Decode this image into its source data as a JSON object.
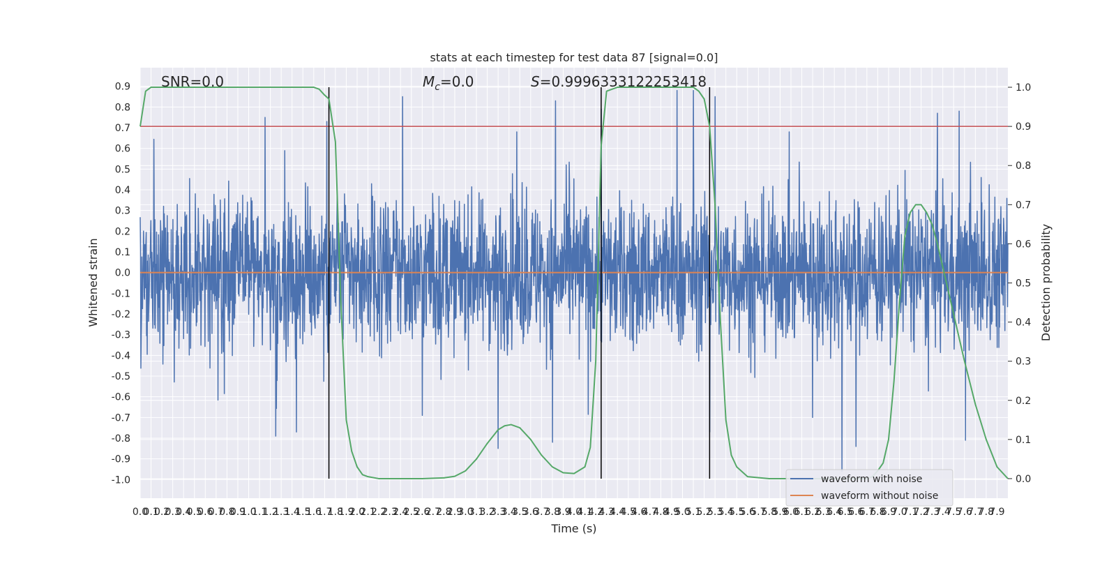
{
  "chart_data": {
    "type": "line",
    "title": "stats at each timestep for test data 87 [signal=0.0]",
    "xlabel": "Time (s)",
    "ylabel_left": "Whitened strain",
    "ylabel_right": "Detection probability",
    "xlim": [
      0.0,
      8.0
    ],
    "ylim_left": [
      -1.09,
      0.99
    ],
    "ylim_right": [
      -0.05,
      1.05
    ],
    "x_ticks": [
      0.0,
      0.1,
      0.2,
      0.3,
      0.4,
      0.5,
      0.6,
      0.7,
      0.8,
      0.9,
      1.0,
      1.1,
      1.2,
      1.3,
      1.4,
      1.5,
      1.6,
      1.7,
      1.8,
      1.9,
      2.0,
      2.1,
      2.2,
      2.3,
      2.4,
      2.5,
      2.6,
      2.7,
      2.8,
      2.9,
      3.0,
      3.1,
      3.2,
      3.3,
      3.4,
      3.5,
      3.6,
      3.7,
      3.8,
      3.9,
      4.0,
      4.1,
      4.2,
      4.3,
      4.4,
      4.5,
      4.6,
      4.7,
      4.8,
      4.9,
      5.0,
      5.1,
      5.2,
      5.3,
      5.4,
      5.5,
      5.6,
      5.7,
      5.8,
      5.9,
      6.0,
      6.1,
      6.2,
      6.3,
      6.4,
      6.5,
      6.6,
      6.7,
      6.8,
      6.9,
      7.0,
      7.1,
      7.2,
      7.3,
      7.4,
      7.5,
      7.6,
      7.7,
      7.8,
      7.9
    ],
    "y_ticks_left": [
      0.9,
      0.8,
      0.7,
      0.6,
      0.5,
      0.4,
      0.3,
      0.2,
      0.1,
      0.0,
      -0.1,
      -0.2,
      -0.3,
      -0.4,
      -0.5,
      -0.6,
      -0.7,
      -0.8,
      -0.9,
      -1.0
    ],
    "y_ticks_right": [
      1.0,
      0.9,
      0.8,
      0.7,
      0.6,
      0.5,
      0.4,
      0.3,
      0.2,
      0.1,
      0.0
    ],
    "annotations": [
      {
        "text": "SNR=0.0",
        "x_data": 0.2
      },
      {
        "text": "Mc=0.0",
        "x_data": 2.6
      },
      {
        "text": "S=0.9996333122253418",
        "x_data": 3.6
      }
    ],
    "annotation_texts": {
      "snr": "SNR=0.0",
      "mc_symbol": "M",
      "mc_sub": "c",
      "mc_value": "=0.0",
      "s_symbol": "S",
      "s_value": "=0.9996333122253418"
    },
    "threshold_line": {
      "value_right_axis": 0.9,
      "color": "#c44e52"
    },
    "vertical_lines_x": [
      1.74,
      4.25,
      5.25
    ],
    "legend": {
      "position": "lower right",
      "entries": [
        {
          "label": "waveform with noise",
          "color": "#4c72b0"
        },
        {
          "label": "waveform without noise",
          "color": "#dd8452"
        }
      ]
    },
    "series": [
      {
        "name": "waveform with noise",
        "color": "#4c72b0",
        "axis": "left",
        "style": "dense noise",
        "typical_envelope": [
          -0.3,
          0.35
        ],
        "peak_spikes": [
          {
            "x": 1.15,
            "y": 0.75
          },
          {
            "x": 1.72,
            "y": 0.73
          },
          {
            "x": 2.42,
            "y": 0.85
          },
          {
            "x": 3.83,
            "y": 0.83
          },
          {
            "x": 4.25,
            "y": 0.79
          },
          {
            "x": 4.95,
            "y": 0.88
          },
          {
            "x": 5.1,
            "y": 0.88
          },
          {
            "x": 5.3,
            "y": 0.85
          },
          {
            "x": 7.35,
            "y": 0.77
          },
          {
            "x": 7.55,
            "y": 0.78
          },
          {
            "x": 1.25,
            "y": -0.79
          },
          {
            "x": 1.44,
            "y": -0.77
          },
          {
            "x": 3.3,
            "y": -0.85
          },
          {
            "x": 3.8,
            "y": -0.82
          },
          {
            "x": 5.25,
            "y": -0.77
          },
          {
            "x": 6.47,
            "y": -0.96
          },
          {
            "x": 6.6,
            "y": -0.84
          },
          {
            "x": 7.61,
            "y": -0.81
          },
          {
            "x": 2.6,
            "y": -0.69
          },
          {
            "x": 6.2,
            "y": -0.7
          }
        ]
      },
      {
        "name": "waveform without noise",
        "color": "#dd8452",
        "axis": "left",
        "x": [
          0.0,
          8.0
        ],
        "y": [
          0.0,
          0.0
        ]
      },
      {
        "name": "detection probability",
        "color": "#55a868",
        "axis": "right",
        "x": [
          0.0,
          0.05,
          0.1,
          0.2,
          0.4,
          0.6,
          0.8,
          1.0,
          1.2,
          1.4,
          1.5,
          1.6,
          1.65,
          1.7,
          1.74,
          1.8,
          1.85,
          1.9,
          1.95,
          2.0,
          2.05,
          2.1,
          2.2,
          2.4,
          2.6,
          2.7,
          2.8,
          2.9,
          3.0,
          3.1,
          3.2,
          3.3,
          3.36,
          3.42,
          3.5,
          3.6,
          3.7,
          3.8,
          3.9,
          4.0,
          4.1,
          4.15,
          4.2,
          4.25,
          4.3,
          4.4,
          4.6,
          4.8,
          5.0,
          5.1,
          5.15,
          5.2,
          5.25,
          5.3,
          5.35,
          5.4,
          5.45,
          5.5,
          5.6,
          5.8,
          6.0,
          6.2,
          6.4,
          6.6,
          6.7,
          6.75,
          6.8,
          6.85,
          6.9,
          6.95,
          7.0,
          7.05,
          7.1,
          7.15,
          7.2,
          7.25,
          7.3,
          7.35,
          7.4,
          7.5,
          7.6,
          7.7,
          7.8,
          7.9,
          8.0
        ],
        "y": [
          0.9,
          0.99,
          1.0,
          1.0,
          1.0,
          1.0,
          1.0,
          1.0,
          1.0,
          1.0,
          1.0,
          1.0,
          0.995,
          0.98,
          0.97,
          0.86,
          0.45,
          0.15,
          0.07,
          0.03,
          0.01,
          0.005,
          0.0,
          0.0,
          0.0,
          0.001,
          0.002,
          0.006,
          0.02,
          0.05,
          0.09,
          0.125,
          0.135,
          0.138,
          0.13,
          0.1,
          0.06,
          0.03,
          0.015,
          0.013,
          0.03,
          0.08,
          0.3,
          0.85,
          0.99,
          1.0,
          1.0,
          1.0,
          1.0,
          1.0,
          0.99,
          0.97,
          0.9,
          0.7,
          0.4,
          0.15,
          0.06,
          0.03,
          0.005,
          0.0,
          0.0,
          0.0,
          0.0,
          0.0,
          0.0,
          0.005,
          0.02,
          0.04,
          0.1,
          0.25,
          0.45,
          0.62,
          0.68,
          0.7,
          0.7,
          0.68,
          0.65,
          0.6,
          0.54,
          0.42,
          0.3,
          0.19,
          0.1,
          0.03,
          0.0
        ]
      }
    ]
  }
}
